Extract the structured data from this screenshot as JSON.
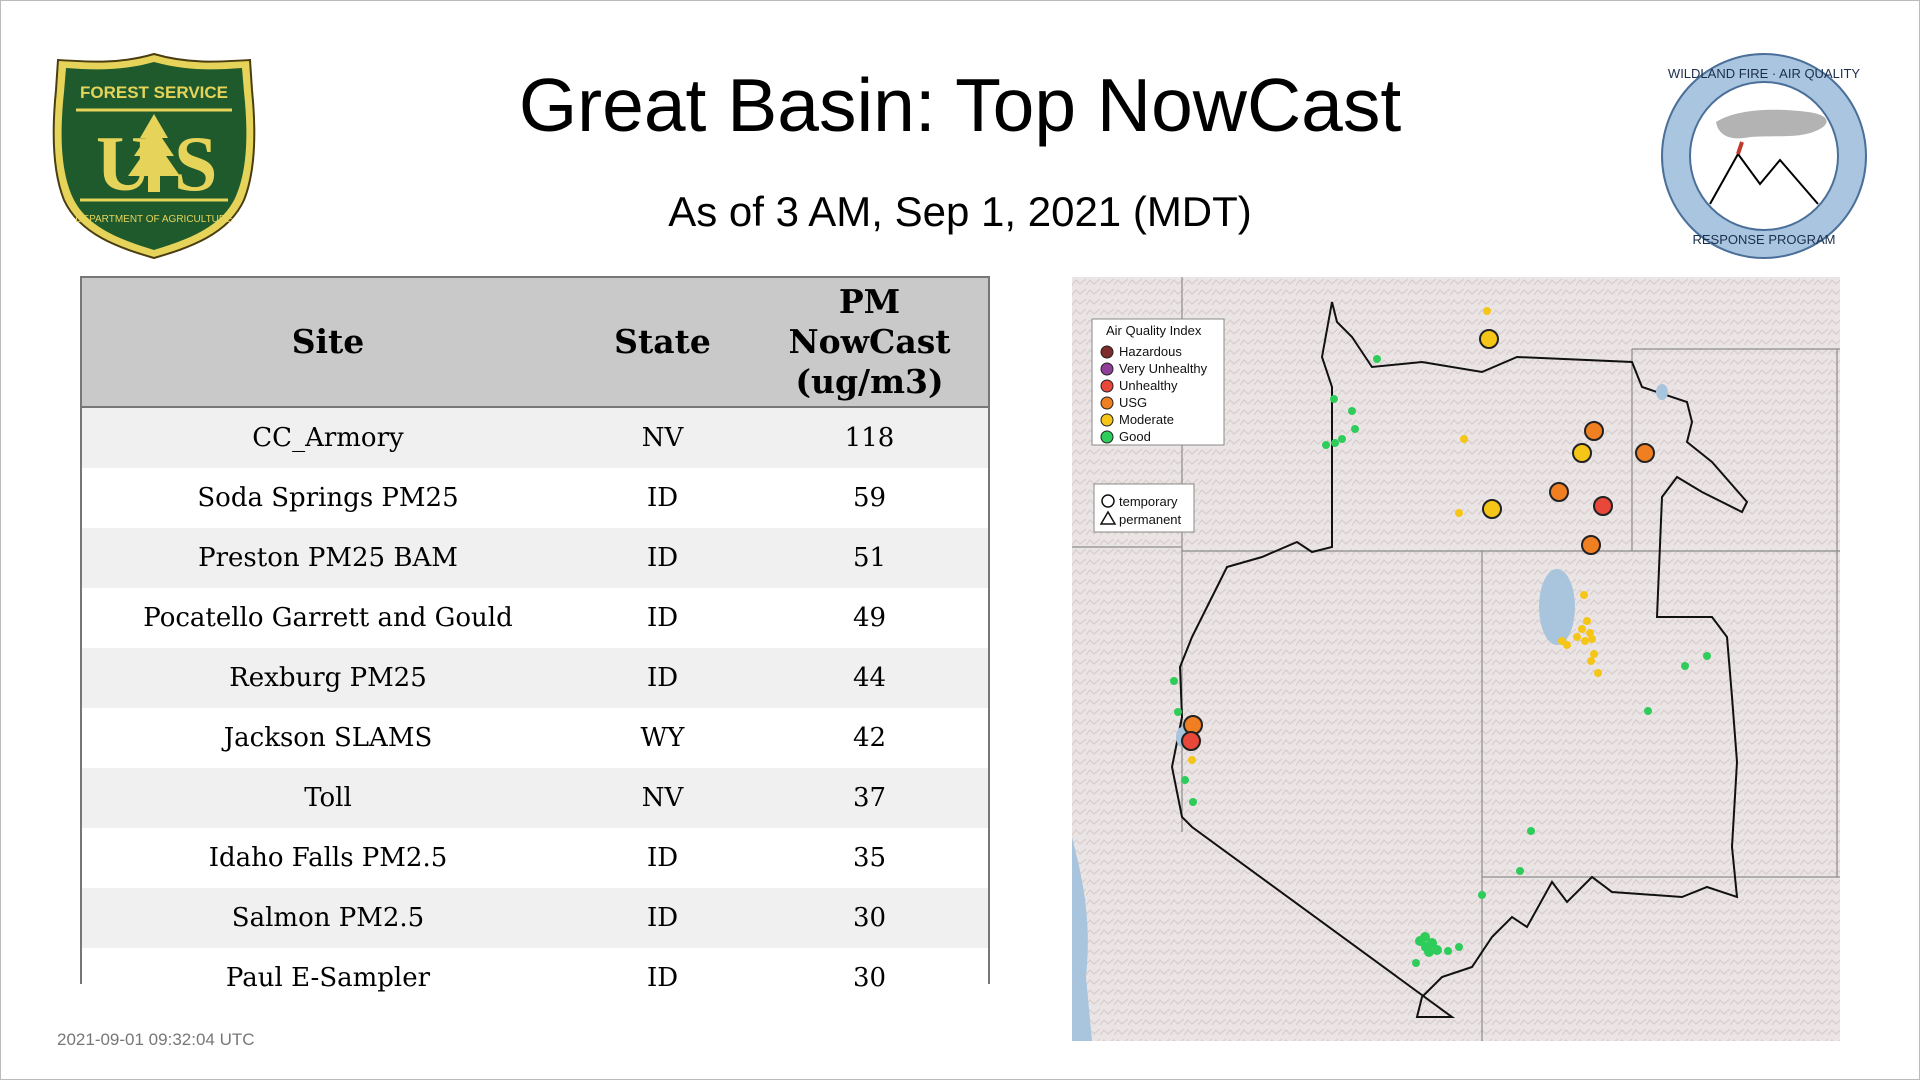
{
  "header": {
    "title": "Great Basin: Top NowCast",
    "subtitle": "As of  3 AM, Sep  1, 2021 (MDT)"
  },
  "logos": {
    "forest_service": {
      "top_text": "FOREST SERVICE",
      "letters": "U S",
      "bottom_text": "DEPARTMENT OF AGRICULTURE"
    },
    "wildland_fire": {
      "top_text": "WILDLAND FIRE · AIR QUALITY",
      "bottom_text": "RESPONSE PROGRAM"
    }
  },
  "table": {
    "columns": [
      "Site",
      "State",
      "PM NowCast (ug/m3)"
    ],
    "rows": [
      {
        "site": "CC_Armory",
        "state": "NV",
        "value": "118"
      },
      {
        "site": "Soda Springs PM25",
        "state": "ID",
        "value": "59"
      },
      {
        "site": "Preston PM25 BAM",
        "state": "ID",
        "value": "51"
      },
      {
        "site": "Pocatello Garrett and Gould",
        "state": "ID",
        "value": "49"
      },
      {
        "site": "Rexburg PM25",
        "state": "ID",
        "value": "44"
      },
      {
        "site": "Jackson SLAMS",
        "state": "WY",
        "value": "42"
      },
      {
        "site": "Toll",
        "state": "NV",
        "value": "37"
      },
      {
        "site": "Idaho Falls PM2.5",
        "state": "ID",
        "value": "35"
      },
      {
        "site": "Salmon PM2.5",
        "state": "ID",
        "value": "30"
      },
      {
        "site": "Paul E-Sampler",
        "state": "ID",
        "value": "30"
      }
    ]
  },
  "map": {
    "legend_aqi": {
      "title": "Air Quality Index",
      "items": [
        {
          "label": "Hazardous",
          "color": "#7e2b2b"
        },
        {
          "label": "Very Unhealthy",
          "color": "#8f3f97"
        },
        {
          "label": "Unhealthy",
          "color": "#e8473a"
        },
        {
          "label": "USG",
          "color": "#f07f22"
        },
        {
          "label": "Moderate",
          "color": "#f5c518"
        },
        {
          "label": "Good",
          "color": "#2ecc5a"
        }
      ]
    },
    "legend_type": {
      "items": [
        {
          "label": "temporary",
          "shape": "circle"
        },
        {
          "label": "permanent",
          "shape": "triangle"
        }
      ]
    }
  },
  "footer": {
    "timestamp": "2021-09-01 09:32:04 UTC"
  }
}
